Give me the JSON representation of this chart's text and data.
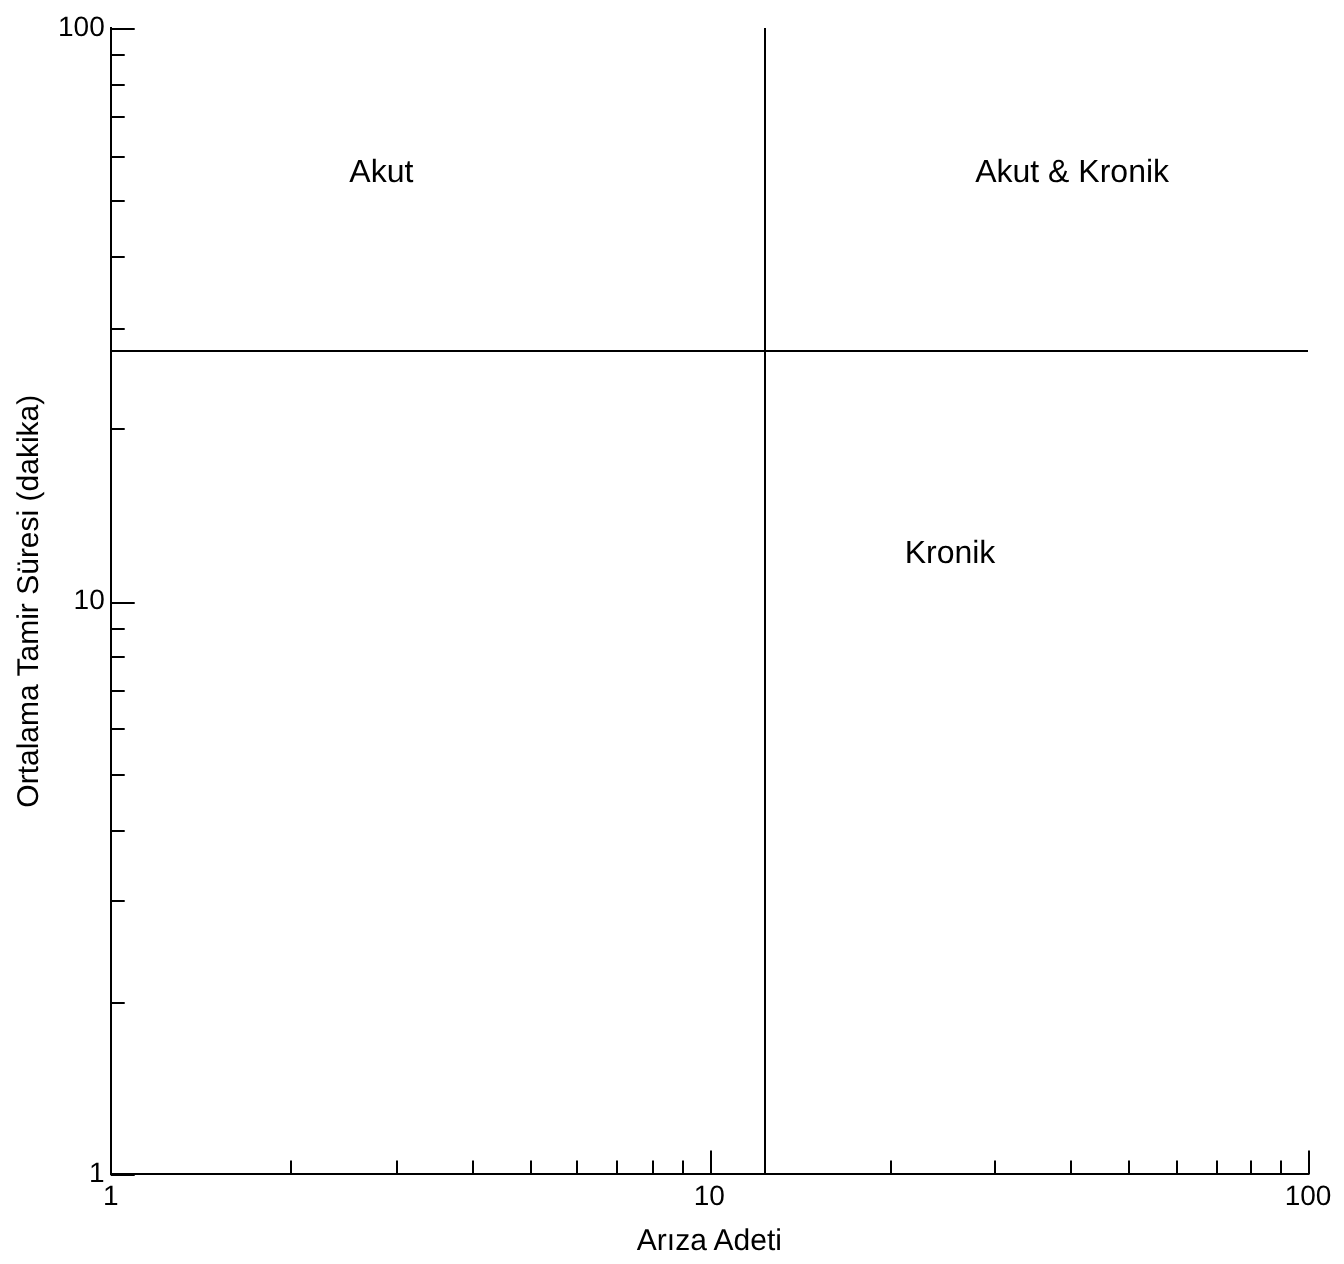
{
  "chart_data": {
    "type": "scatter",
    "xlabel": "Arıza Adeti",
    "ylabel": "Ortalama Tamir Süresi (dakika)",
    "log": "xy",
    "grid": false,
    "legend": false,
    "xlim": [
      1,
      100
    ],
    "ylim": [
      1,
      100
    ],
    "xticks": [
      1,
      {
        "value": 2,
        "label": null
      },
      {
        "value": 3,
        "label": null
      },
      {
        "value": 4,
        "label": null
      },
      {
        "value": 5,
        "label": null
      },
      {
        "value": 6,
        "label": null
      },
      {
        "value": 7,
        "label": null
      },
      {
        "value": 8,
        "label": null
      },
      {
        "value": 9,
        "label": null
      },
      10,
      {
        "value": 20,
        "label": null
      },
      {
        "value": 30,
        "label": null
      },
      {
        "value": 40,
        "label": null
      },
      {
        "value": 50,
        "label": null
      },
      {
        "value": 60,
        "label": null
      },
      {
        "value": 70,
        "label": null
      },
      {
        "value": 80,
        "label": null
      },
      {
        "value": 90,
        "label": null
      },
      100
    ],
    "yticks": [
      1,
      {
        "value": 2,
        "label": null
      },
      {
        "value": 3,
        "label": null
      },
      {
        "value": 4,
        "label": null
      },
      {
        "value": 5,
        "label": null
      },
      {
        "value": 6,
        "label": null
      },
      {
        "value": 7,
        "label": null
      },
      {
        "value": 8,
        "label": null
      },
      {
        "value": 9,
        "label": null
      },
      10,
      {
        "value": 20,
        "label": null
      },
      {
        "value": 30,
        "label": null
      },
      {
        "value": 40,
        "label": null
      },
      {
        "value": 50,
        "label": null
      },
      {
        "value": 60,
        "label": null
      },
      {
        "value": 70,
        "label": null
      },
      {
        "value": 80,
        "label": null
      },
      {
        "value": 90,
        "label": null
      },
      100
    ],
    "ref_lines": [
      {
        "axis": "x",
        "value": 12.3,
        "color": "#000000"
      },
      {
        "axis": "y",
        "value": 27.5,
        "color": "#000000"
      }
    ],
    "annotations": [
      "Akut",
      "Akut & Kronik",
      "Kronik"
    ]
  }
}
